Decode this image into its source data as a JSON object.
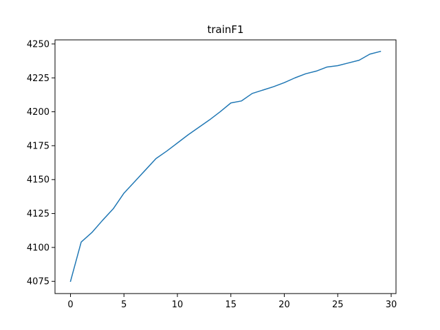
{
  "chart_data": {
    "type": "line",
    "title": "trainF1",
    "xlabel": "",
    "ylabel": "",
    "xlim": [
      -1.45,
      30.45
    ],
    "ylim": [
      4066,
      4253
    ],
    "grid": false,
    "legend": "none",
    "line_color": "#1f77b4",
    "xticks": [
      0,
      5,
      10,
      15,
      20,
      25,
      30
    ],
    "yticks": [
      4075,
      4100,
      4125,
      4150,
      4175,
      4200,
      4225,
      4250
    ],
    "series": [
      {
        "x": [
          0,
          1,
          2,
          3,
          4,
          5,
          6,
          7,
          8,
          9,
          10,
          11,
          12,
          13,
          14,
          15,
          16,
          17,
          18,
          19,
          20,
          21,
          22,
          23,
          24,
          25,
          26,
          27,
          28,
          29
        ],
        "values": [
          4075,
          4104,
          4111,
          4120,
          4128.5,
          4140,
          4148.5,
          4157,
          4165.5,
          4171,
          4177,
          4183,
          4188.5,
          4194,
          4200,
          4206.5,
          4208,
          4213.5,
          4216,
          4218.5,
          4221.5,
          4225,
          4228,
          4230,
          4233,
          4234,
          4236,
          4238,
          4242.5,
          4244.5
        ]
      }
    ]
  }
}
